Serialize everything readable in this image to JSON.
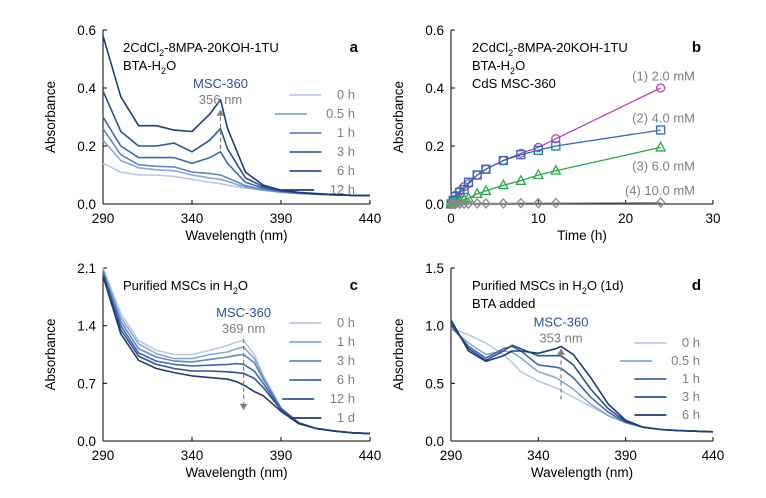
{
  "colors": {
    "blue_series": [
      "#b9c9e4",
      "#8aa7d1",
      "#6288bd",
      "#4169a6",
      "#2f5390",
      "#213c70"
    ],
    "pink": "#c040b0",
    "blue": "#2e6db4",
    "green": "#2aa64a",
    "gray": "#8a8a8a",
    "ann_gray": "#7f7f7f",
    "ann_blue": "#2f4f8f"
  },
  "chart_data": [
    {
      "id": "a",
      "type": "line",
      "letter": "a",
      "title": "",
      "xlabel": "Wavelength (nm)",
      "ylabel": "Absorbance",
      "xlim": [
        290,
        440
      ],
      "ylim": [
        0,
        0.6
      ],
      "xticks": [
        "290",
        "340",
        "390",
        "440"
      ],
      "yticks": [
        "0.0",
        "0.2",
        "0.4",
        "0.6"
      ],
      "notes": [
        {
          "parts": [
            {
              "t": "2CdCl"
            },
            {
              "t": "2",
              "sub": true
            },
            {
              "t": "-8MPA-20KOH-1TU"
            }
          ]
        },
        {
          "parts": [
            {
              "t": "BTA-H"
            },
            {
              "t": "2",
              "sub": true
            },
            {
              "t": "O"
            }
          ]
        }
      ],
      "annotation": {
        "label": "MSC-360",
        "value": "356 nm",
        "x": 356,
        "y_from": 0.19,
        "y_to": 0.325
      },
      "series": [
        {
          "name": "0 h",
          "x": [
            290,
            300,
            310,
            320,
            330,
            340,
            350,
            356,
            360,
            370,
            380,
            390,
            400,
            410,
            420,
            430,
            440
          ],
          "y": [
            0.14,
            0.11,
            0.1,
            0.1,
            0.095,
            0.085,
            0.075,
            0.07,
            0.065,
            0.055,
            0.047,
            0.04,
            0.036,
            0.033,
            0.031,
            0.03,
            0.029
          ]
        },
        {
          "name": "0.5 h",
          "x": [
            290,
            300,
            310,
            320,
            330,
            340,
            350,
            356,
            360,
            370,
            380,
            390,
            400,
            410,
            420,
            430,
            440
          ],
          "y": [
            0.22,
            0.15,
            0.125,
            0.118,
            0.115,
            0.1,
            0.09,
            0.085,
            0.078,
            0.058,
            0.048,
            0.041,
            0.037,
            0.034,
            0.031,
            0.03,
            0.029
          ]
        },
        {
          "name": "1 h",
          "x": [
            290,
            300,
            310,
            320,
            330,
            340,
            350,
            356,
            360,
            370,
            380,
            390,
            400,
            410,
            420,
            430,
            440
          ],
          "y": [
            0.26,
            0.17,
            0.135,
            0.13,
            0.128,
            0.11,
            0.105,
            0.1,
            0.09,
            0.063,
            0.05,
            0.042,
            0.037,
            0.034,
            0.031,
            0.03,
            0.029
          ]
        },
        {
          "name": "3 h",
          "x": [
            290,
            300,
            310,
            320,
            330,
            340,
            350,
            356,
            360,
            370,
            380,
            390,
            400,
            410,
            420,
            430,
            440
          ],
          "y": [
            0.3,
            0.2,
            0.16,
            0.16,
            0.16,
            0.14,
            0.16,
            0.18,
            0.14,
            0.075,
            0.055,
            0.044,
            0.038,
            0.034,
            0.031,
            0.03,
            0.029
          ]
        },
        {
          "name": "6 h",
          "x": [
            290,
            300,
            310,
            320,
            330,
            340,
            350,
            356,
            360,
            370,
            380,
            390,
            400,
            410,
            420,
            430,
            440
          ],
          "y": [
            0.39,
            0.25,
            0.2,
            0.2,
            0.21,
            0.18,
            0.22,
            0.26,
            0.19,
            0.09,
            0.06,
            0.046,
            0.039,
            0.035,
            0.032,
            0.03,
            0.029
          ]
        },
        {
          "name": "12 h",
          "x": [
            290,
            300,
            310,
            320,
            330,
            340,
            350,
            356,
            360,
            370,
            380,
            390,
            400,
            410,
            420,
            430,
            440
          ],
          "y": [
            0.58,
            0.37,
            0.27,
            0.27,
            0.255,
            0.25,
            0.31,
            0.36,
            0.26,
            0.11,
            0.065,
            0.048,
            0.04,
            0.036,
            0.032,
            0.03,
            0.029
          ]
        }
      ]
    },
    {
      "id": "b",
      "type": "scatter",
      "letter": "b",
      "title": "",
      "xlabel": "Time (h)",
      "ylabel": "Absorbance",
      "xlim": [
        0,
        30
      ],
      "ylim": [
        0,
        0.6
      ],
      "xticks": [
        "0",
        "10",
        "20",
        "30"
      ],
      "yticks": [
        "0.0",
        "0.2",
        "0.4",
        "0.6"
      ],
      "notes": [
        {
          "parts": [
            {
              "t": "2CdCl"
            },
            {
              "t": "2",
              "sub": true
            },
            {
              "t": "-8MPA-20KOH-1TU"
            }
          ]
        },
        {
          "parts": [
            {
              "t": "BTA-H"
            },
            {
              "t": "2",
              "sub": true
            },
            {
              "t": "O"
            }
          ]
        },
        {
          "parts": [
            {
              "t": "CdS MSC-360"
            }
          ]
        }
      ],
      "series": [
        {
          "name": "(1) 2.0 mM",
          "marker": "circle",
          "color_key": "pink",
          "label_y": 0.44,
          "x": [
            0,
            0.25,
            0.5,
            1,
            1.5,
            2,
            3,
            4,
            6,
            8,
            10,
            12,
            24
          ],
          "y": [
            0,
            0.015,
            0.03,
            0.045,
            0.06,
            0.07,
            0.1,
            0.12,
            0.15,
            0.175,
            0.195,
            0.225,
            0.4
          ]
        },
        {
          "name": "(2) 4.0 mM",
          "marker": "square",
          "color_key": "blue",
          "label_y": 0.295,
          "x": [
            0,
            0.25,
            0.5,
            1,
            1.5,
            2,
            3,
            4,
            6,
            8,
            10,
            12,
            24
          ],
          "y": [
            0,
            0.012,
            0.025,
            0.04,
            0.05,
            0.075,
            0.1,
            0.12,
            0.15,
            0.17,
            0.185,
            0.2,
            0.255
          ]
        },
        {
          "name": "(3) 6.0 mM",
          "marker": "triangle",
          "color_key": "green",
          "label_y": 0.13,
          "x": [
            0,
            0.25,
            0.5,
            1,
            1.5,
            2,
            3,
            4,
            6,
            8,
            10,
            12,
            24
          ],
          "y": [
            0,
            0.003,
            0.006,
            0.01,
            0.015,
            0.02,
            0.035,
            0.045,
            0.065,
            0.08,
            0.1,
            0.115,
            0.195
          ]
        },
        {
          "name": "(4) 10.0 mM",
          "marker": "diamond",
          "color_key": "gray",
          "label_y": 0.045,
          "x": [
            0,
            0.25,
            0.5,
            1,
            1.5,
            2,
            3,
            4,
            6,
            8,
            10,
            12,
            24
          ],
          "y": [
            0,
            0,
            0,
            0.001,
            0.001,
            0.001,
            0.002,
            0.002,
            0.002,
            0.003,
            0.003,
            0.003,
            0.005
          ]
        }
      ]
    },
    {
      "id": "c",
      "type": "line",
      "letter": "c",
      "title": "",
      "xlabel": "Wavelength (nm)",
      "ylabel": "Absorbance",
      "xlim": [
        290,
        440
      ],
      "ylim": [
        0,
        2.1
      ],
      "xticks": [
        "290",
        "340",
        "390",
        "440"
      ],
      "yticks": [
        "0.0",
        "0.7",
        "1.4",
        "2.1"
      ],
      "notes": [
        {
          "parts": [
            {
              "t": "Purified MSCs in H"
            },
            {
              "t": "2",
              "sub": true
            },
            {
              "t": "O"
            }
          ]
        }
      ],
      "annotation": {
        "label": "MSC-360",
        "value": "369 nm",
        "x": 369,
        "y_from": 1.24,
        "y_to": 0.38
      },
      "series": [
        {
          "name": "0 h",
          "x": [
            290,
            300,
            310,
            320,
            330,
            340,
            350,
            360,
            365,
            369,
            375,
            380,
            390,
            400,
            410,
            420,
            430,
            440
          ],
          "y": [
            2.1,
            1.55,
            1.22,
            1.1,
            1.05,
            1.05,
            1.1,
            1.16,
            1.2,
            1.22,
            1.05,
            0.8,
            0.4,
            0.22,
            0.15,
            0.12,
            0.1,
            0.09
          ]
        },
        {
          "name": "1 h",
          "x": [
            290,
            300,
            310,
            320,
            330,
            340,
            350,
            360,
            365,
            369,
            375,
            380,
            390,
            400,
            410,
            420,
            430,
            440
          ],
          "y": [
            2.08,
            1.5,
            1.18,
            1.06,
            1.0,
            1.0,
            1.05,
            1.08,
            1.12,
            1.14,
            1.0,
            0.78,
            0.4,
            0.22,
            0.15,
            0.12,
            0.1,
            0.09
          ]
        },
        {
          "name": "3 h",
          "x": [
            290,
            300,
            310,
            320,
            330,
            340,
            350,
            360,
            365,
            369,
            375,
            380,
            390,
            400,
            410,
            420,
            430,
            440
          ],
          "y": [
            2.06,
            1.45,
            1.12,
            1.02,
            0.97,
            0.96,
            0.99,
            1.02,
            1.04,
            1.05,
            0.95,
            0.75,
            0.4,
            0.22,
            0.15,
            0.12,
            0.1,
            0.09
          ]
        },
        {
          "name": "6 h",
          "x": [
            290,
            300,
            310,
            320,
            330,
            340,
            350,
            360,
            365,
            369,
            375,
            380,
            390,
            400,
            410,
            420,
            430,
            440
          ],
          "y": [
            2.04,
            1.4,
            1.07,
            0.97,
            0.93,
            0.91,
            0.92,
            0.93,
            0.94,
            0.93,
            0.85,
            0.7,
            0.39,
            0.22,
            0.15,
            0.12,
            0.1,
            0.09
          ]
        },
        {
          "name": "12 h",
          "x": [
            290,
            300,
            310,
            320,
            330,
            340,
            350,
            360,
            365,
            369,
            375,
            380,
            390,
            400,
            410,
            420,
            430,
            440
          ],
          "y": [
            2.02,
            1.35,
            1.03,
            0.93,
            0.88,
            0.85,
            0.85,
            0.84,
            0.83,
            0.82,
            0.76,
            0.65,
            0.38,
            0.22,
            0.15,
            0.12,
            0.1,
            0.09
          ]
        },
        {
          "name": "1 d",
          "x": [
            290,
            300,
            310,
            320,
            330,
            340,
            350,
            360,
            365,
            369,
            375,
            380,
            390,
            400,
            410,
            420,
            430,
            440
          ],
          "y": [
            2.0,
            1.3,
            0.98,
            0.88,
            0.83,
            0.79,
            0.77,
            0.75,
            0.72,
            0.68,
            0.6,
            0.55,
            0.36,
            0.21,
            0.15,
            0.12,
            0.1,
            0.09
          ]
        }
      ]
    },
    {
      "id": "d",
      "type": "line",
      "letter": "d",
      "title": "",
      "xlabel": "Wavelength (nm)",
      "ylabel": "Absorbance",
      "xlim": [
        290,
        440
      ],
      "ylim": [
        0,
        1.5
      ],
      "xticks": [
        "290",
        "340",
        "390",
        "440"
      ],
      "yticks": [
        "0.0",
        "0.5",
        "1.0",
        "1.5"
      ],
      "notes": [
        {
          "parts": [
            {
              "t": "Purified MSCs in H"
            },
            {
              "t": "2",
              "sub": true
            },
            {
              "t": "O (1d)"
            }
          ]
        },
        {
          "parts": [
            {
              "t": "BTA added"
            }
          ]
        }
      ],
      "annotation": {
        "label": "MSC-360",
        "value": "353 nm",
        "x": 353,
        "y_from": 0.36,
        "y_to": 0.8
      },
      "series": [
        {
          "name": "0 h",
          "x": [
            290,
            300,
            310,
            320,
            325,
            330,
            340,
            350,
            353,
            360,
            370,
            380,
            390,
            400,
            410,
            420,
            430,
            440
          ],
          "y": [
            0.98,
            0.92,
            0.85,
            0.75,
            0.68,
            0.6,
            0.52,
            0.46,
            0.44,
            0.38,
            0.3,
            0.22,
            0.16,
            0.12,
            0.1,
            0.09,
            0.085,
            0.08
          ]
        },
        {
          "name": "0.5 h",
          "x": [
            290,
            300,
            310,
            320,
            325,
            330,
            340,
            350,
            353,
            360,
            370,
            380,
            390,
            400,
            410,
            420,
            430,
            440
          ],
          "y": [
            0.98,
            0.85,
            0.75,
            0.78,
            0.77,
            0.72,
            0.6,
            0.55,
            0.52,
            0.45,
            0.32,
            0.22,
            0.16,
            0.12,
            0.1,
            0.09,
            0.085,
            0.08
          ]
        },
        {
          "name": "1 h",
          "x": [
            290,
            300,
            310,
            320,
            325,
            330,
            340,
            350,
            353,
            360,
            370,
            380,
            390,
            400,
            410,
            420,
            430,
            440
          ],
          "y": [
            1.0,
            0.82,
            0.72,
            0.8,
            0.82,
            0.78,
            0.66,
            0.64,
            0.63,
            0.55,
            0.38,
            0.25,
            0.16,
            0.12,
            0.1,
            0.09,
            0.085,
            0.08
          ]
        },
        {
          "name": "3 h",
          "x": [
            290,
            300,
            310,
            320,
            325,
            330,
            340,
            350,
            353,
            360,
            370,
            380,
            390,
            400,
            410,
            420,
            430,
            440
          ],
          "y": [
            1.02,
            0.8,
            0.7,
            0.78,
            0.83,
            0.8,
            0.74,
            0.74,
            0.74,
            0.66,
            0.45,
            0.28,
            0.17,
            0.12,
            0.1,
            0.09,
            0.085,
            0.08
          ]
        },
        {
          "name": "6 h",
          "x": [
            290,
            300,
            310,
            320,
            325,
            330,
            340,
            350,
            353,
            360,
            370,
            380,
            390,
            400,
            410,
            420,
            430,
            440
          ],
          "y": [
            1.05,
            0.78,
            0.69,
            0.74,
            0.78,
            0.78,
            0.76,
            0.8,
            0.82,
            0.75,
            0.55,
            0.32,
            0.18,
            0.12,
            0.1,
            0.09,
            0.085,
            0.08
          ]
        }
      ]
    }
  ]
}
